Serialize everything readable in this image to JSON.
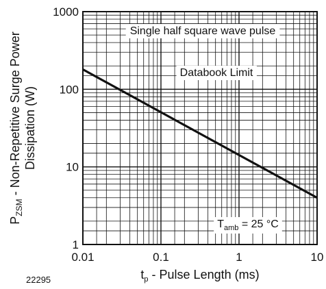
{
  "chart_data": {
    "type": "line",
    "x_scale": "log",
    "y_scale": "log",
    "xlim": [
      0.01,
      10
    ],
    "ylim": [
      1,
      1000
    ],
    "grid": true,
    "x_ticks": [
      "0.01",
      "0.1",
      "1",
      "10"
    ],
    "y_ticks": [
      "1",
      "10",
      "100",
      "1000"
    ],
    "xlabel": {
      "main": "t",
      "sub": "p",
      "rest": " - Pulse Length (ms)"
    },
    "ylabel": {
      "line1_main": "P",
      "line1_sub": "ZSM",
      "line1_rest": " - Non-Repetitive Surge Power",
      "line2": "Dissipation (W)"
    },
    "annotations": {
      "title_box": "Single half square wave pulse",
      "series_label": "Databook Limit",
      "condition": {
        "main": "T",
        "sub": "amb",
        "rest": " = 25 °C"
      }
    },
    "figure_id": "22295",
    "series": [
      {
        "name": "Databook Limit",
        "x": [
          0.01,
          10
        ],
        "y": [
          180,
          4
        ]
      }
    ]
  }
}
